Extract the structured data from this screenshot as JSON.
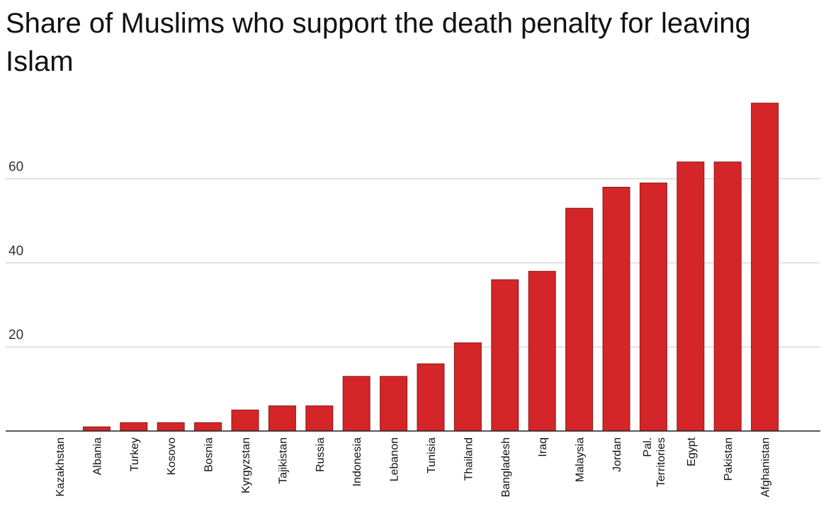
{
  "chart_data": {
    "type": "bar",
    "title": "Share of Muslims who support the death penalty for leaving Islam",
    "xlabel": "",
    "ylabel": "",
    "ylim": [
      0,
      78
    ],
    "yticks": [
      20,
      40,
      60
    ],
    "grid": true,
    "bar_color": "#d42528",
    "bar_stroke": "#8a1a1a",
    "categories": [
      "Kazakhstan",
      "Albania",
      "Turkey",
      "Kosovo",
      "Bosnia",
      "Kyrgyzstan",
      "Tajikistan",
      "Russia",
      "Indonesia",
      "Lebanon",
      "Tunisia",
      "Thailand",
      "Bangladesh",
      "Iraq",
      "Malaysia",
      "Jordan",
      "Pal.\nTerritories",
      "Egypt",
      "Pakistan",
      "Afghanistan"
    ],
    "values": [
      0,
      1,
      2,
      2,
      2,
      5,
      6,
      6,
      13,
      13,
      16,
      21,
      36,
      38,
      53,
      58,
      59,
      64,
      64,
      78
    ]
  }
}
